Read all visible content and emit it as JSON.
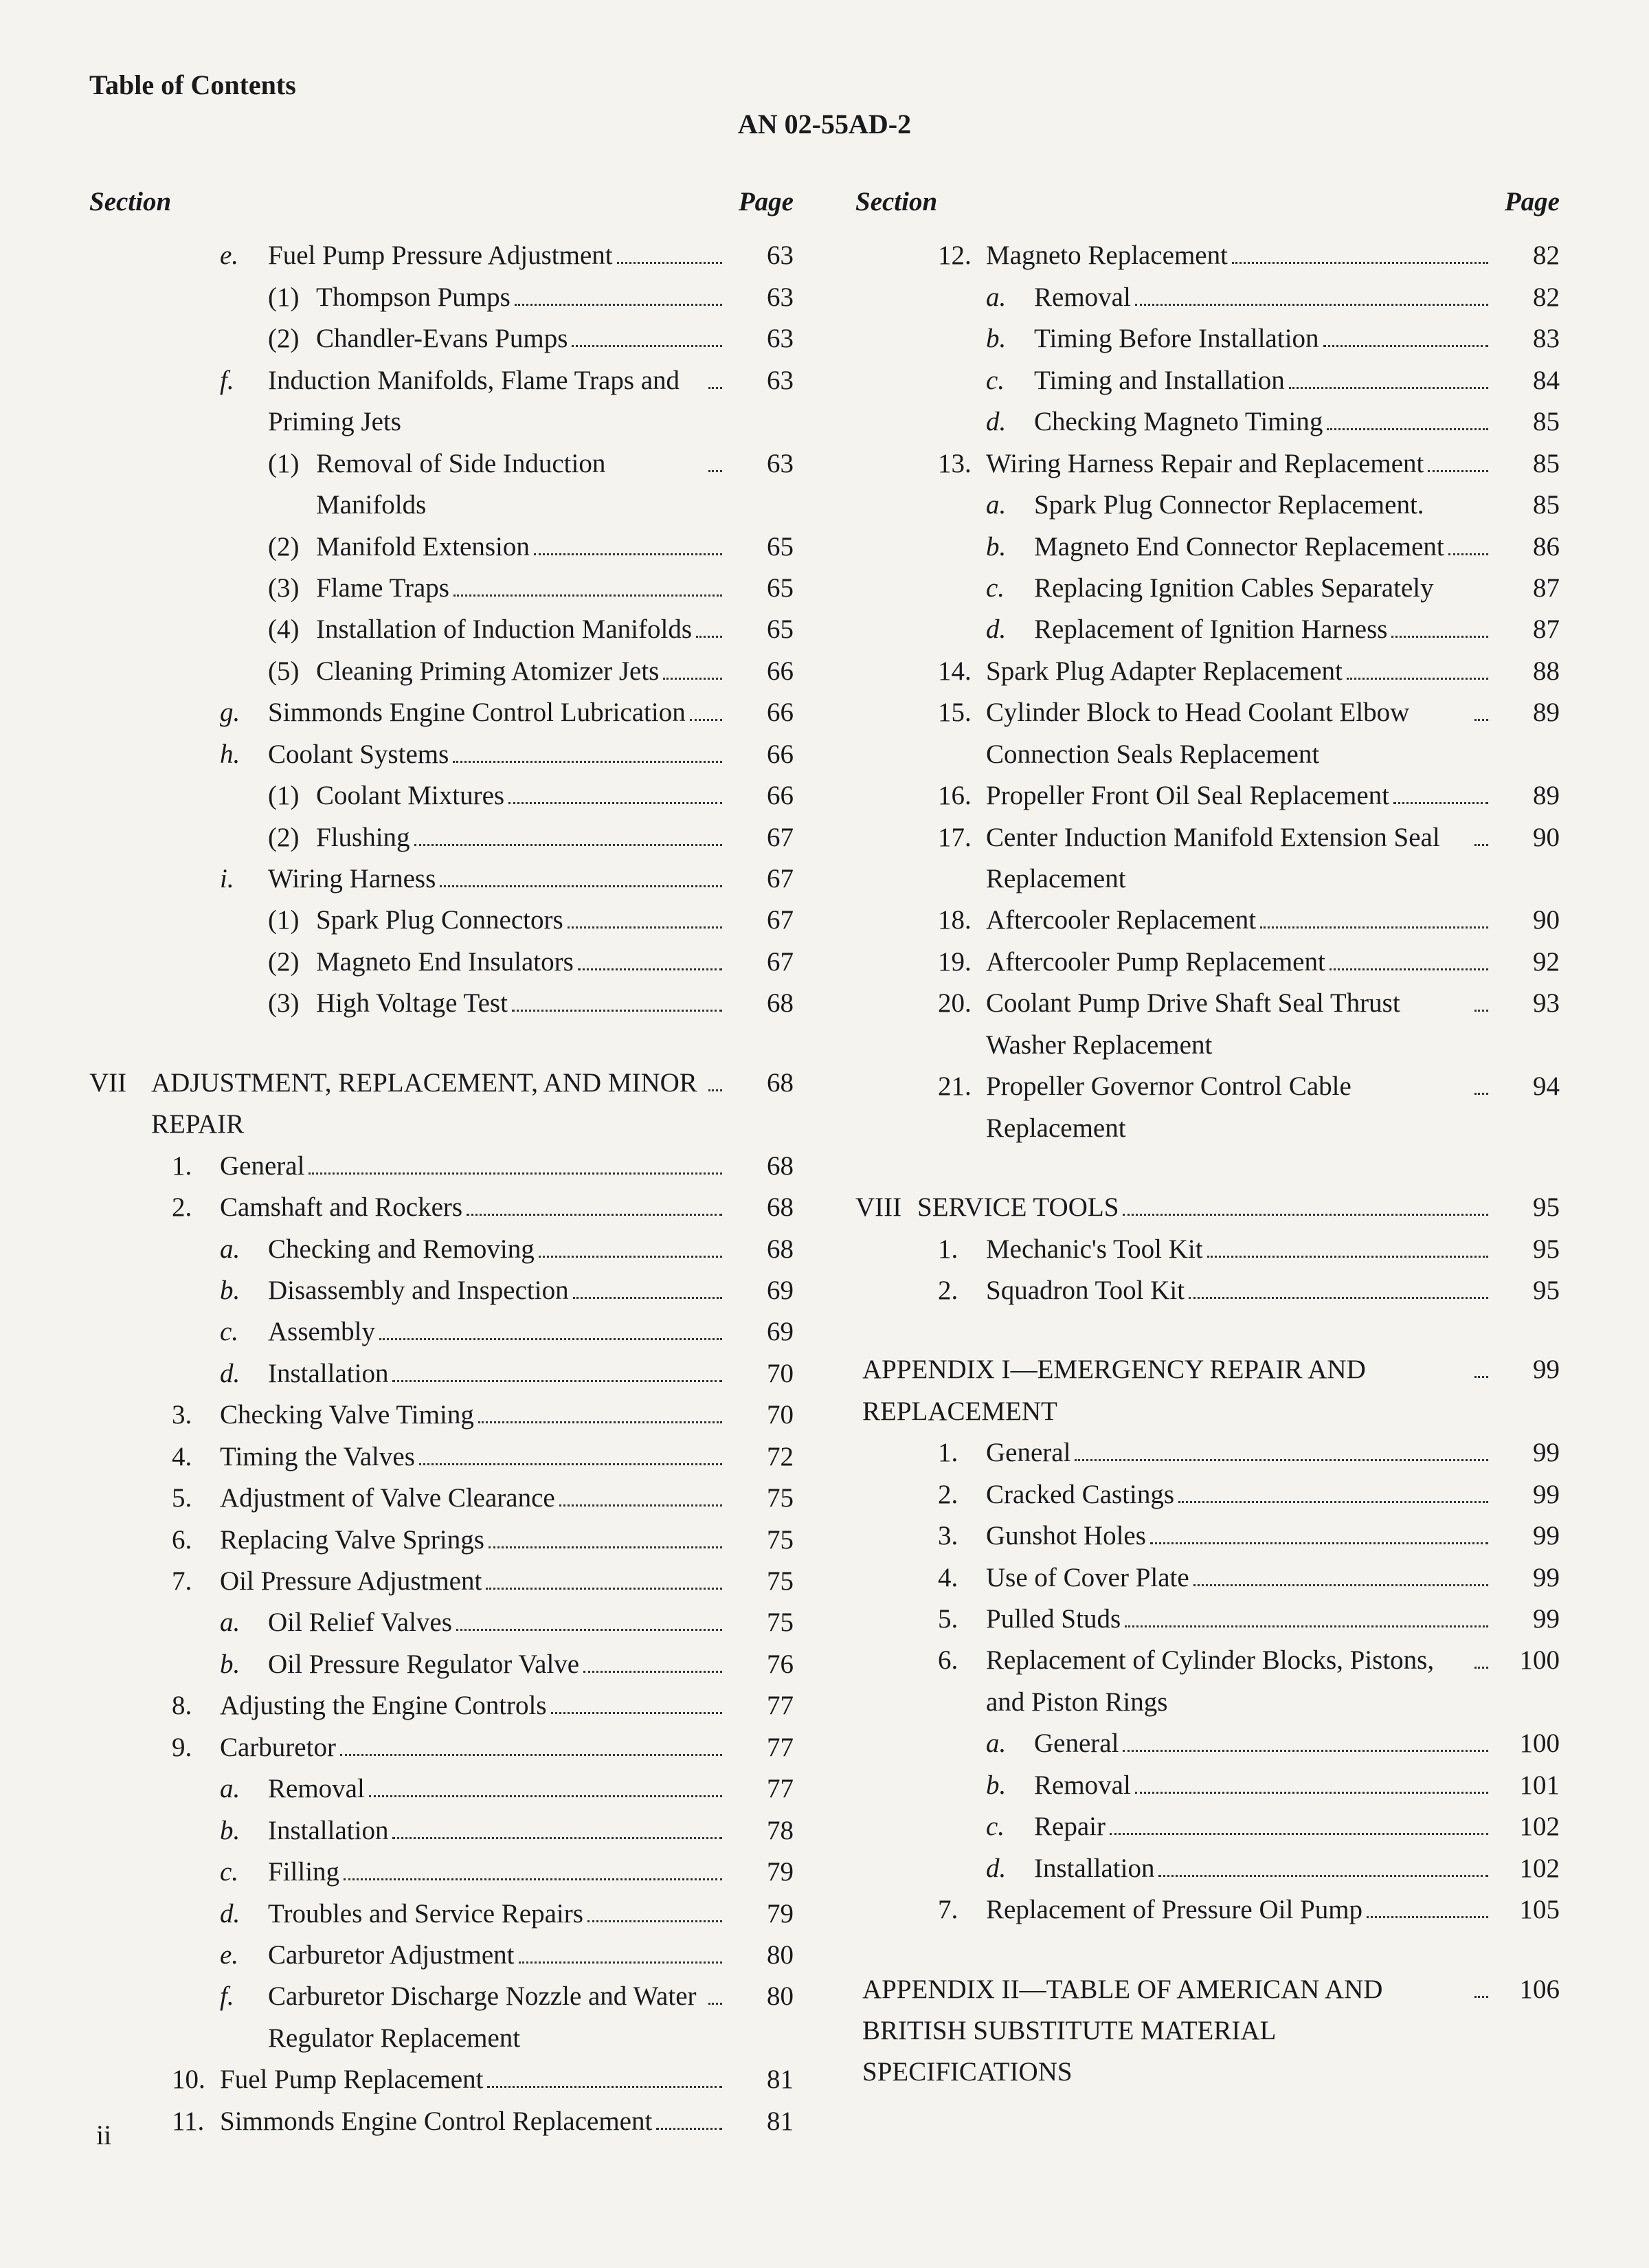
{
  "header": {
    "toc": "Table of Contents",
    "docnum": "AN 02-55AD-2"
  },
  "colhead": {
    "section": "Section",
    "page": "Page"
  },
  "pagenum": "ii",
  "left": [
    {
      "indent": 2,
      "marker": "e.",
      "ital": true,
      "text": "Fuel Pump Pressure Adjustment",
      "page": "63"
    },
    {
      "indent": 3,
      "marker": "(1)",
      "text": "Thompson Pumps",
      "page": "63"
    },
    {
      "indent": 3,
      "marker": "(2)",
      "text": "Chandler-Evans Pumps",
      "page": "63"
    },
    {
      "indent": 2,
      "marker": "f.",
      "ital": true,
      "text": "Induction Manifolds, Flame Traps and Priming Jets",
      "page": "63"
    },
    {
      "indent": 3,
      "marker": "(1)",
      "text": "Removal of Side Induction Manifolds",
      "page": "63"
    },
    {
      "indent": 3,
      "marker": "(2)",
      "text": "Manifold Extension",
      "page": "65"
    },
    {
      "indent": 3,
      "marker": "(3)",
      "text": "Flame Traps",
      "page": "65"
    },
    {
      "indent": 3,
      "marker": "(4)",
      "text": "Installation of Induction Manifolds",
      "page": "65"
    },
    {
      "indent": 3,
      "marker": "(5)",
      "text": "Cleaning Priming Atomizer Jets",
      "page": "66"
    },
    {
      "indent": 2,
      "marker": "g.",
      "ital": true,
      "text": "Simmonds Engine Control Lubrication",
      "page": "66"
    },
    {
      "indent": 2,
      "marker": "h.",
      "ital": true,
      "text": "Coolant Systems",
      "page": "66"
    },
    {
      "indent": 3,
      "marker": "(1)",
      "text": "Coolant Mixtures",
      "page": "66"
    },
    {
      "indent": 3,
      "marker": "(2)",
      "text": "Flushing",
      "page": "67"
    },
    {
      "indent": 2,
      "marker": "i.",
      "ital": true,
      "text": "Wiring Harness",
      "page": "67"
    },
    {
      "indent": 3,
      "marker": "(1)",
      "text": "Spark Plug Connectors",
      "page": "67"
    },
    {
      "indent": 3,
      "marker": "(2)",
      "text": "Magneto End Insulators",
      "page": "67"
    },
    {
      "indent": 3,
      "marker": "(3)",
      "text": "High Voltage Test",
      "page": "68"
    },
    {
      "gap": true
    },
    {
      "indent": 0,
      "marker": "VII",
      "wide": true,
      "text": "ADJUSTMENT, REPLACEMENT, AND MINOR REPAIR",
      "page": "68"
    },
    {
      "indent": 1,
      "marker": "1.",
      "text": "General",
      "page": "68"
    },
    {
      "indent": 1,
      "marker": "2.",
      "text": "Camshaft and Rockers",
      "page": "68"
    },
    {
      "indent": 2,
      "marker": "a.",
      "ital": true,
      "text": "Checking and Removing",
      "page": "68"
    },
    {
      "indent": 2,
      "marker": "b.",
      "ital": true,
      "text": "Disassembly and Inspection",
      "page": "69"
    },
    {
      "indent": 2,
      "marker": "c.",
      "ital": true,
      "text": "Assembly",
      "page": "69"
    },
    {
      "indent": 2,
      "marker": "d.",
      "ital": true,
      "text": "Installation",
      "page": "70"
    },
    {
      "indent": 1,
      "marker": "3.",
      "text": "Checking Valve Timing",
      "page": "70"
    },
    {
      "indent": 1,
      "marker": "4.",
      "text": "Timing the Valves",
      "page": "72"
    },
    {
      "indent": 1,
      "marker": "5.",
      "text": "Adjustment of Valve Clearance",
      "page": "75"
    },
    {
      "indent": 1,
      "marker": "6.",
      "text": "Replacing Valve Springs",
      "page": "75"
    },
    {
      "indent": 1,
      "marker": "7.",
      "text": "Oil Pressure Adjustment",
      "page": "75"
    },
    {
      "indent": 2,
      "marker": "a.",
      "ital": true,
      "text": "Oil Relief Valves",
      "page": "75"
    },
    {
      "indent": 2,
      "marker": "b.",
      "ital": true,
      "text": "Oil Pressure Regulator Valve",
      "page": "76"
    },
    {
      "indent": 1,
      "marker": "8.",
      "text": "Adjusting the Engine Controls",
      "page": "77"
    },
    {
      "indent": 1,
      "marker": "9.",
      "text": "Carburetor",
      "page": "77"
    },
    {
      "indent": 2,
      "marker": "a.",
      "ital": true,
      "text": "Removal",
      "page": "77"
    },
    {
      "indent": 2,
      "marker": "b.",
      "ital": true,
      "text": "Installation",
      "page": "78"
    },
    {
      "indent": 2,
      "marker": "c.",
      "ital": true,
      "text": "Filling",
      "page": "79"
    },
    {
      "indent": 2,
      "marker": "d.",
      "ital": true,
      "text": "Troubles and Service Repairs",
      "page": "79"
    },
    {
      "indent": 2,
      "marker": "e.",
      "ital": true,
      "text": "Carburetor Adjustment",
      "page": "80"
    },
    {
      "indent": 2,
      "marker": "f.",
      "ital": true,
      "text": "Carburetor Discharge Nozzle and Water Regulator Replacement",
      "page": "80"
    },
    {
      "indent": 1,
      "marker": "10.",
      "text": "Fuel Pump Replacement",
      "page": "81"
    },
    {
      "indent": 1,
      "marker": "11.",
      "text": "Simmonds Engine Control Replacement",
      "page": "81"
    }
  ],
  "right": [
    {
      "indent": 1,
      "marker": "12.",
      "text": "Magneto Replacement",
      "page": "82"
    },
    {
      "indent": 2,
      "marker": "a.",
      "ital": true,
      "text": "Removal",
      "page": "82"
    },
    {
      "indent": 2,
      "marker": "b.",
      "ital": true,
      "text": "Timing Before Installation",
      "page": "83"
    },
    {
      "indent": 2,
      "marker": "c.",
      "ital": true,
      "text": "Timing and Installation",
      "page": "84"
    },
    {
      "indent": 2,
      "marker": "d.",
      "ital": true,
      "text": "Checking Magneto Timing",
      "page": "85"
    },
    {
      "indent": 1,
      "marker": "13.",
      "text": "Wiring Harness Repair and Replacement",
      "page": "85"
    },
    {
      "indent": 2,
      "marker": "a.",
      "ital": true,
      "text": "Spark Plug Connector Replacement.",
      "page": "85",
      "nodots": true
    },
    {
      "indent": 2,
      "marker": "b.",
      "ital": true,
      "text": "Magneto End Connector Replacement",
      "page": "86"
    },
    {
      "indent": 2,
      "marker": "c.",
      "ital": true,
      "text": "Replacing Ignition Cables Separately",
      "page": "87",
      "nodots": true
    },
    {
      "indent": 2,
      "marker": "d.",
      "ital": true,
      "text": "Replacement of Ignition Harness",
      "page": "87"
    },
    {
      "indent": 1,
      "marker": "14.",
      "text": "Spark Plug Adapter Replacement",
      "page": "88"
    },
    {
      "indent": 1,
      "marker": "15.",
      "text": "Cylinder Block to Head Coolant Elbow Connection Seals Replacement",
      "page": "89"
    },
    {
      "indent": 1,
      "marker": "16.",
      "text": "Propeller Front Oil Seal Replacement",
      "page": "89"
    },
    {
      "indent": 1,
      "marker": "17.",
      "text": "Center Induction Manifold Extension Seal Replacement",
      "page": "90"
    },
    {
      "indent": 1,
      "marker": "18.",
      "text": "Aftercooler Replacement",
      "page": "90"
    },
    {
      "indent": 1,
      "marker": "19.",
      "text": "Aftercooler Pump Replacement",
      "page": "92"
    },
    {
      "indent": 1,
      "marker": "20.",
      "text": "Coolant Pump Drive Shaft Seal Thrust Washer Replacement",
      "page": "93"
    },
    {
      "indent": 1,
      "marker": "21.",
      "text": "Propeller Governor Control Cable Replacement",
      "page": "94"
    },
    {
      "gap": true
    },
    {
      "indent": 0,
      "marker": "VIII",
      "wide": true,
      "text": "SERVICE TOOLS",
      "page": "95"
    },
    {
      "indent": 1,
      "marker": "1.",
      "text": "Mechanic's Tool Kit",
      "page": "95"
    },
    {
      "indent": 1,
      "marker": "2.",
      "text": "Squadron Tool Kit",
      "page": "95"
    },
    {
      "gap": true
    },
    {
      "indent": 0,
      "marker": "",
      "text": "APPENDIX I—EMERGENCY REPAIR AND REPLACEMENT",
      "page": "99"
    },
    {
      "indent": 1,
      "marker": "1.",
      "text": "General",
      "page": "99"
    },
    {
      "indent": 1,
      "marker": "2.",
      "text": "Cracked Castings",
      "page": "99"
    },
    {
      "indent": 1,
      "marker": "3.",
      "text": "Gunshot Holes",
      "page": "99"
    },
    {
      "indent": 1,
      "marker": "4.",
      "text": "Use of Cover Plate",
      "page": "99"
    },
    {
      "indent": 1,
      "marker": "5.",
      "text": "Pulled Studs",
      "page": "99"
    },
    {
      "indent": 1,
      "marker": "6.",
      "text": "Replacement of Cylinder Blocks, Pistons, and Piston Rings",
      "page": "100"
    },
    {
      "indent": 2,
      "marker": "a.",
      "ital": true,
      "text": "General",
      "page": "100"
    },
    {
      "indent": 2,
      "marker": "b.",
      "ital": true,
      "text": "Removal",
      "page": "101"
    },
    {
      "indent": 2,
      "marker": "c.",
      "ital": true,
      "text": "Repair",
      "page": "102"
    },
    {
      "indent": 2,
      "marker": "d.",
      "ital": true,
      "text": "Installation",
      "page": "102"
    },
    {
      "indent": 1,
      "marker": "7.",
      "text": "Replacement of Pressure Oil Pump",
      "page": "105"
    },
    {
      "gap": true
    },
    {
      "indent": 0,
      "marker": "",
      "text": "APPENDIX II—TABLE OF AMERICAN AND BRITISH SUBSTITUTE MATERIAL SPECIFICATIONS",
      "page": "106"
    }
  ]
}
